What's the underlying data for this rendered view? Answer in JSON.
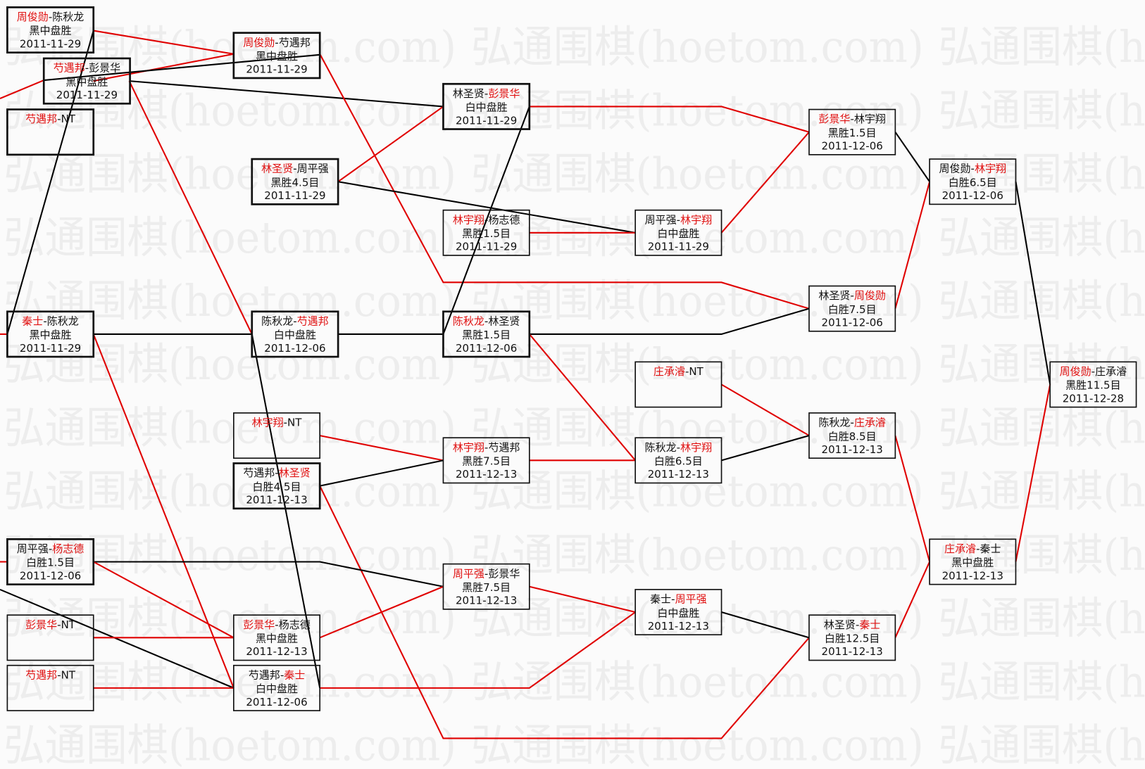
{
  "watermark": "弘通围棋(hoetom.com)",
  "colors": {
    "winner": "#e01010",
    "loser_line": "#000000",
    "winner_line": "#e00000"
  },
  "matches": [
    {
      "id": "A",
      "players": [
        "周俊勋",
        "陈秋龙"
      ],
      "winner": 0,
      "result": "黑中盘胜",
      "date": "2011-11-29"
    },
    {
      "id": "B1",
      "players": [
        "芍遇邦",
        "NT"
      ],
      "winner": 0,
      "result": "",
      "date": ""
    },
    {
      "id": "B2",
      "players": [
        "芍遇邦",
        "彭景华"
      ],
      "winner": 0,
      "result": "黑中盘胜",
      "date": "2011-11-29"
    },
    {
      "id": "C",
      "players": [
        "秦士",
        "陈秋龙"
      ],
      "winner": 0,
      "result": "黑中盘胜",
      "date": "2011-11-29"
    },
    {
      "id": "D",
      "players": [
        "周平强",
        "杨志德"
      ],
      "winner": 1,
      "result": "白胜1.5目",
      "date": "2011-12-06"
    },
    {
      "id": "E",
      "players": [
        "彭景华",
        "NT"
      ],
      "winner": 0,
      "result": "",
      "date": ""
    },
    {
      "id": "F",
      "players": [
        "芍遇邦",
        "NT"
      ],
      "winner": 0,
      "result": "",
      "date": ""
    },
    {
      "id": "G",
      "players": [
        "周俊勋",
        "芍遇邦"
      ],
      "winner": 0,
      "result": "黑中盘胜",
      "date": "2011-11-29"
    },
    {
      "id": "H",
      "players": [
        "林圣贤",
        "周平强"
      ],
      "winner": 0,
      "result": "黑胜4.5目",
      "date": "2011-11-29"
    },
    {
      "id": "I",
      "players": [
        "陈秋龙",
        "芍遇邦"
      ],
      "winner": 1,
      "result": "白中盘胜",
      "date": "2011-12-06"
    },
    {
      "id": "J",
      "players": [
        "林宇翔",
        "NT"
      ],
      "winner": 0,
      "result": "",
      "date": ""
    },
    {
      "id": "K",
      "players": [
        "芍遇邦",
        "林圣贤"
      ],
      "winner": 1,
      "result": "白胜4.5目",
      "date": "2011-12-13"
    },
    {
      "id": "L",
      "players": [
        "彭景华",
        "杨志德"
      ],
      "winner": 0,
      "result": "黑中盘胜",
      "date": "2011-12-13"
    },
    {
      "id": "M",
      "players": [
        "芍遇邦",
        "秦士"
      ],
      "winner": 1,
      "result": "白中盘胜",
      "date": "2011-12-06"
    },
    {
      "id": "N",
      "players": [
        "林圣贤",
        "彭景华"
      ],
      "winner": 1,
      "result": "白中盘胜",
      "date": "2011-11-29"
    },
    {
      "id": "O",
      "players": [
        "林宇翔",
        "杨志德"
      ],
      "winner": 0,
      "result": "黑胜1.5目",
      "date": "2011-11-29"
    },
    {
      "id": "P",
      "players": [
        "陈秋龙",
        "林圣贤"
      ],
      "winner": 0,
      "result": "黑胜1.5目",
      "date": "2011-12-06"
    },
    {
      "id": "Q",
      "players": [
        "林宇翔",
        "芍遇邦"
      ],
      "winner": 0,
      "result": "黑胜7.5目",
      "date": "2011-12-13"
    },
    {
      "id": "R",
      "players": [
        "周平强",
        "彭景华"
      ],
      "winner": 0,
      "result": "黑胜7.5目",
      "date": "2011-12-13"
    },
    {
      "id": "S",
      "players": [
        "周平强",
        "林宇翔"
      ],
      "winner": 1,
      "result": "白中盘胜",
      "date": "2011-11-29"
    },
    {
      "id": "T",
      "players": [
        "庄承濬",
        "NT"
      ],
      "winner": 0,
      "result": "",
      "date": ""
    },
    {
      "id": "U",
      "players": [
        "陈秋龙",
        "林宇翔"
      ],
      "winner": 1,
      "result": "白胜6.5目",
      "date": "2011-12-13"
    },
    {
      "id": "V",
      "players": [
        "秦士",
        "周平强"
      ],
      "winner": 1,
      "result": "白中盘胜",
      "date": "2011-12-13"
    },
    {
      "id": "W",
      "players": [
        "彭景华",
        "林宇翔"
      ],
      "winner": 0,
      "result": "黑胜1.5目",
      "date": "2011-12-06"
    },
    {
      "id": "X",
      "players": [
        "林圣贤",
        "周俊勋"
      ],
      "winner": 1,
      "result": "白胜7.5目",
      "date": "2011-12-06"
    },
    {
      "id": "Y",
      "players": [
        "陈秋龙",
        "庄承濬"
      ],
      "winner": 1,
      "result": "白胜8.5目",
      "date": "2011-12-13"
    },
    {
      "id": "Z",
      "players": [
        "林圣贤",
        "秦士"
      ],
      "winner": 1,
      "result": "白胜12.5目",
      "date": "2011-12-13"
    },
    {
      "id": "AA",
      "players": [
        "周俊勋",
        "林宇翔"
      ],
      "winner": 1,
      "result": "白胜6.5目",
      "date": "2011-12-06"
    },
    {
      "id": "AB",
      "players": [
        "庄承濬",
        "秦士"
      ],
      "winner": 0,
      "result": "黑中盘胜",
      "date": "2011-12-13"
    },
    {
      "id": "AC",
      "players": [
        "周俊勋",
        "庄承濬"
      ],
      "winner": 0,
      "result": "黑胜11.5目",
      "date": "2011-12-28"
    }
  ]
}
